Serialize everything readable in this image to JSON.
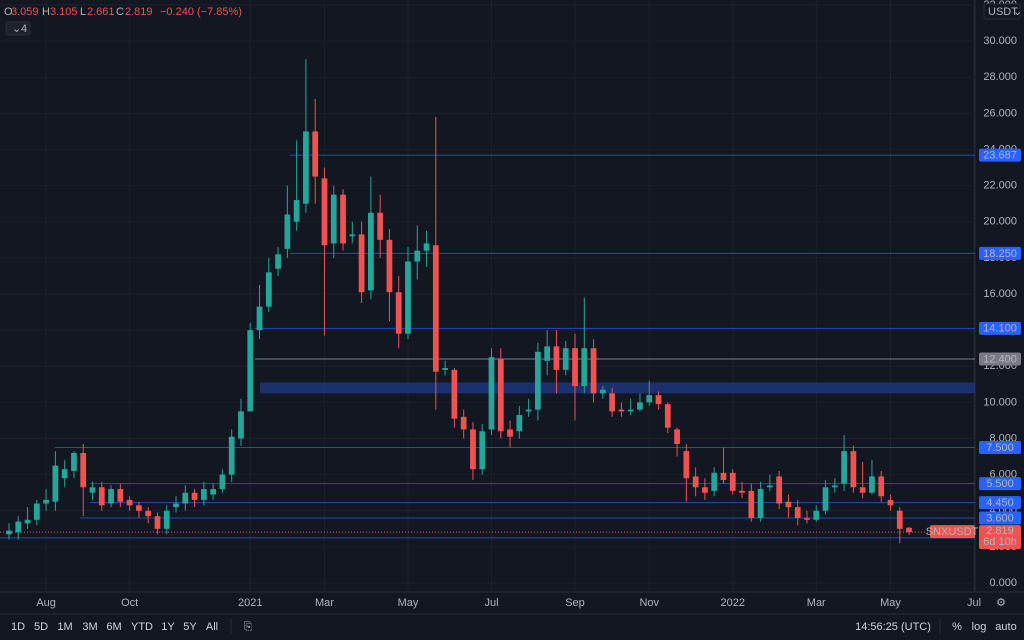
{
  "chart_data": {
    "type": "candlestick",
    "header": {
      "items": [
        {
          "key": "O",
          "value": "3.059"
        },
        {
          "key": "H",
          "value": "3.105"
        },
        {
          "key": "L",
          "value": "2.661"
        },
        {
          "key": "C",
          "value": "2.819"
        }
      ],
      "change": "−0.240 (−7.85%)"
    },
    "indicator_count": 4,
    "currency": "USDT",
    "up_color": "#26a69a",
    "down_color": "#ef5350",
    "categories": [
      null,
      null,
      null,
      null,
      "Aug",
      null,
      null,
      null,
      null,
      null,
      null,
      null,
      null,
      "Oct",
      null,
      null,
      null,
      null,
      null,
      null,
      null,
      null,
      null,
      null,
      null,
      null,
      "2021",
      null,
      null,
      null,
      null,
      null,
      null,
      null,
      "Mar",
      null,
      null,
      null,
      null,
      null,
      null,
      null,
      null,
      "May",
      null,
      null,
      null,
      null,
      null,
      null,
      null,
      null,
      "Jul",
      null,
      null,
      null,
      null,
      null,
      null,
      null,
      null,
      "Sep",
      null,
      null,
      null,
      null,
      null,
      null,
      null,
      "Nov",
      null,
      null,
      null,
      null,
      null,
      null,
      null,
      null,
      "2022",
      null,
      null,
      null,
      null,
      null,
      null,
      null,
      null,
      "Mar",
      null,
      null,
      null,
      null,
      null,
      null,
      null,
      "May",
      null,
      null,
      null,
      null,
      null,
      null,
      null,
      null,
      "Jul"
    ],
    "candles": {
      "open": [
        2.7,
        2.8,
        3.3,
        3.5,
        4.4,
        4.5,
        5.8,
        6.2,
        7.2,
        5.0,
        5.3,
        4.4,
        5.2,
        4.6,
        4.3,
        4.0,
        3.7,
        3.0,
        4.2,
        4.4,
        5.0,
        4.6,
        4.9,
        5.2,
        6.0,
        8.0,
        9.5,
        14,
        15.3,
        17.4,
        18.5,
        20,
        21,
        25,
        22.4,
        18.8,
        21.5,
        19.2,
        19.3,
        16.2,
        20.5,
        19,
        16.1,
        13.8,
        17.8,
        18.4,
        18.7,
        11.8,
        11.8,
        9.2,
        8.5,
        6.3,
        8.5,
        12.4,
        8.5,
        8.4,
        9.5,
        9.6,
        12.3,
        13.1,
        11.8,
        13.0,
        10.9,
        13.0,
        10.5,
        10.5,
        9.6,
        9.5,
        9.6,
        10.0,
        10.4,
        9.9,
        8.5,
        7.3,
        5.9,
        5.3,
        5.1,
        6.1,
        6.1,
        5.1,
        5.1,
        3.6,
        5.3,
        5.9,
        4.5,
        4.2,
        3.6,
        3.5,
        4.0,
        5.3,
        5.5,
        7.3,
        5.3,
        5.0,
        5.9,
        4.6,
        4.0,
        3.059,
        null,
        null,
        null,
        null,
        null,
        null,
        null
      ],
      "high": [
        3.3,
        3.7,
        4.2,
        4.6,
        5.2,
        7.3,
        6.8,
        7.3,
        7.7,
        5.6,
        5.6,
        5.4,
        5.5,
        4.8,
        4.5,
        4.2,
        3.9,
        4.3,
        4.8,
        5.4,
        5.2,
        5.6,
        5.5,
        6.3,
        8.5,
        10.2,
        14.4,
        16.5,
        18.0,
        18.6,
        22.0,
        24.5,
        29.0,
        26.8,
        23.0,
        22.0,
        21.8,
        20.0,
        20.0,
        22.5,
        21.5,
        19.6,
        17.0,
        18.6,
        19.8,
        19.5,
        25.8,
        12.3,
        11.9,
        9.6,
        8.9,
        8.8,
        13.0,
        13.0,
        9.0,
        9.8,
        10.2,
        13.3,
        14.0,
        14.0,
        13.4,
        13.8,
        15.8,
        13.5,
        10.9,
        10.8,
        10.0,
        10.2,
        10.5,
        11.2,
        10.6,
        10.0,
        8.6,
        7.7,
        6.4,
        5.8,
        6.4,
        7.5,
        6.3,
        5.6,
        5.5,
        5.6,
        6.0,
        6.2,
        4.9,
        4.6,
        4.0,
        4.3,
        5.7,
        5.8,
        8.2,
        7.6,
        6.7,
        6.8,
        6.2,
        4.9,
        4.2,
        3.105,
        null,
        null,
        null,
        null,
        null,
        null,
        null
      ],
      "low": [
        2.4,
        2.4,
        3.0,
        3.2,
        4.0,
        4.0,
        5.3,
        5.8,
        3.7,
        4.6,
        4.0,
        4.2,
        4.2,
        4.0,
        3.6,
        3.3,
        2.7,
        2.7,
        3.9,
        4.0,
        4.2,
        4.3,
        4.6,
        5.0,
        5.6,
        7.6,
        10.5,
        13.5,
        15.0,
        17.0,
        18.0,
        19.5,
        20.5,
        21.0,
        13.7,
        18.0,
        18.4,
        18.8,
        15.5,
        15.7,
        18.0,
        14.5,
        13.0,
        13.5,
        16.8,
        17.5,
        9.6,
        11.5,
        8.6,
        8.0,
        5.7,
        6.0,
        8.2,
        8.0,
        7.5,
        8.0,
        9.2,
        9.0,
        11.5,
        10.5,
        11.5,
        9.0,
        10.5,
        10.0,
        10.2,
        9.2,
        9.2,
        9.3,
        9.5,
        9.8,
        9.6,
        8.3,
        7.0,
        4.5,
        4.8,
        4.6,
        4.8,
        5.5,
        4.9,
        4.7,
        3.4,
        3.4,
        5.1,
        4.1,
        3.6,
        3.2,
        3.3,
        3.4,
        3.8,
        5.0,
        5.1,
        5.0,
        4.7,
        4.9,
        4.5,
        4.0,
        2.2,
        2.661,
        null,
        null,
        null,
        null,
        null,
        null,
        null
      ],
      "close": [
        2.9,
        3.4,
        3.5,
        4.4,
        4.6,
        6.5,
        6.3,
        7.2,
        5.3,
        5.3,
        4.3,
        5.2,
        4.5,
        4.3,
        4.0,
        3.7,
        3.0,
        4.0,
        4.4,
        5.0,
        4.6,
        5.2,
        5.2,
        6.0,
        8.1,
        9.5,
        14.0,
        15.3,
        17.2,
        18.2,
        20.4,
        21.2,
        25,
        22.5,
        18.7,
        21.5,
        18.8,
        19.3,
        16.1,
        20.5,
        19,
        16.1,
        13.8,
        17.8,
        18.4,
        18.8,
        11.7,
        11.9,
        9.1,
        8.5,
        6.3,
        8.4,
        12.5,
        8.4,
        8.1,
        9.3,
        9.6,
        12.8,
        13.1,
        11.8,
        13.0,
        10.9,
        13.0,
        10.5,
        10.7,
        9.5,
        9.5,
        9.6,
        10.0,
        10.4,
        9.9,
        8.6,
        7.7,
        5.8,
        5.3,
        5.0,
        6.1,
        5.7,
        5.1,
        5.0,
        3.6,
        5.2,
        5.4,
        4.4,
        4.2,
        3.6,
        3.5,
        4.0,
        5.3,
        5.4,
        7.3,
        5.3,
        5.0,
        5.9,
        4.8,
        4.3,
        3.0,
        2.819,
        null,
        null,
        null,
        null,
        null,
        null,
        null
      ]
    },
    "ylim": [
      0,
      32
    ],
    "yticks": [
      {
        "value": 0,
        "label": "0.000"
      },
      {
        "value": 2,
        "label": "2.000"
      },
      {
        "value": 4,
        "label": "4.000"
      },
      {
        "value": 6,
        "label": "6.000"
      },
      {
        "value": 8,
        "label": "8.000"
      },
      {
        "value": 10,
        "label": "10.000"
      },
      {
        "value": 12,
        "label": "12.000"
      },
      {
        "value": 14,
        "label": "14.000"
      },
      {
        "value": 16,
        "label": "16.000"
      },
      {
        "value": 18,
        "label": "18.000"
      },
      {
        "value": 20,
        "label": "20.000"
      },
      {
        "value": 22,
        "label": "22.000"
      },
      {
        "value": 24,
        "label": "24.000"
      },
      {
        "value": 26,
        "label": "26.000"
      },
      {
        "value": 28,
        "label": "28.000"
      },
      {
        "value": 30,
        "label": "30.000"
      },
      {
        "value": 32,
        "label": "32.000"
      }
    ],
    "grid": true,
    "levels": [
      {
        "value": 23.687,
        "label": "23.687"
      },
      {
        "value": 18.25,
        "label": "18.250"
      },
      {
        "value": 14.1,
        "label": "14.100"
      },
      {
        "value": 12.4,
        "label": "12.400"
      },
      {
        "value": 7.5,
        "label": "7.500"
      },
      {
        "value": 5.5,
        "label": "5.500"
      },
      {
        "value": 4.45,
        "label": "4.450"
      },
      {
        "value": 3.6,
        "label": "3.600"
      },
      {
        "value": 2.5,
        "label": "2.500"
      }
    ],
    "level_color": "#2962ff",
    "zone": [
      10.5,
      11.1
    ],
    "last_price": {
      "symbol": "SNXUSDT",
      "value": 2.819,
      "label": "2.819",
      "countdown": "6d 10h"
    },
    "toolbar": {
      "ranges": [
        "1D",
        "5D",
        "1M",
        "3M",
        "6M",
        "YTD",
        "1Y",
        "5Y",
        "All"
      ],
      "time": "14:56:25 (UTC)",
      "options": [
        "%",
        "log",
        "auto"
      ]
    }
  }
}
